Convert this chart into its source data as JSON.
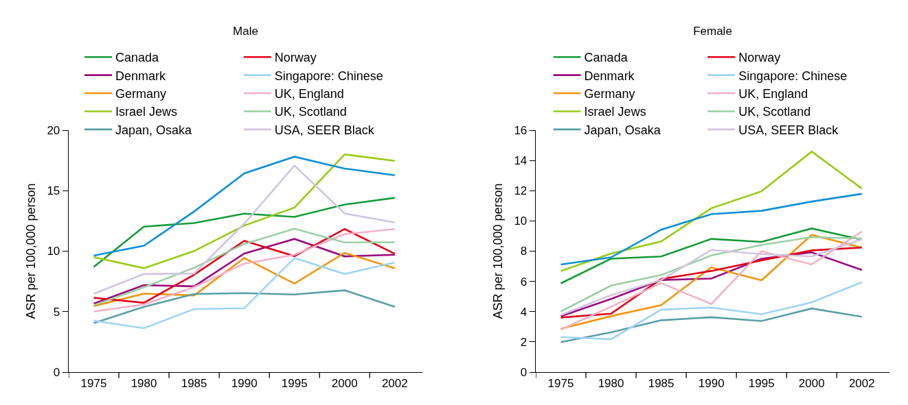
{
  "chart_data": [
    {
      "type": "line",
      "title": "Male",
      "ylabel": "ASR per 100,000 person",
      "categories": [
        "1975",
        "1980",
        "1985",
        "1990",
        "1995",
        "2000",
        "2002"
      ],
      "ylim": [
        0,
        20
      ],
      "yticks": [
        0,
        5,
        10,
        15,
        20
      ],
      "grid": false,
      "legend": "top",
      "marker": "none",
      "line_style": "solid",
      "series": [
        {
          "name": "Canada",
          "color": "#169b3a",
          "values": [
            8.7,
            12.03,
            12.32,
            13.1,
            12.83,
            13.85,
            14.41
          ]
        },
        {
          "name": "Denmark",
          "color": "#9b0a7d",
          "values": [
            5.67,
            7.19,
            7.09,
            9.8,
            11.01,
            9.57,
            9.7
          ]
        },
        {
          "name": "Germany",
          "color": "#f0960f",
          "values": [
            5.46,
            6.49,
            6.34,
            9.43,
            7.32,
            9.86,
            8.59
          ]
        },
        {
          "name": "Israel Jews",
          "color": "#97cb14",
          "values": [
            9.51,
            8.59,
            10.01,
            12.12,
            13.6,
            18.0,
            17.46
          ]
        },
        {
          "name": "Japan, Osaka",
          "color": "#5a9ea6",
          "values": [
            4.05,
            5.4,
            6.46,
            6.53,
            6.42,
            6.76,
            5.4
          ]
        },
        {
          "name": "Norway",
          "color": "#e2001a",
          "values": [
            6.15,
            5.73,
            8.05,
            10.85,
            9.59,
            11.83,
            9.78
          ]
        },
        {
          "name": "Singapore: Chinese",
          "color": "#9fd4f3",
          "values": [
            4.25,
            3.63,
            5.21,
            5.28,
            9.43,
            8.11,
            9.07
          ]
        },
        {
          "name": "UK, England",
          "color": "#f5b0c5",
          "values": [
            5.01,
            5.59,
            7.03,
            8.97,
            9.7,
            11.41,
            11.83
          ]
        },
        {
          "name": "UK, Scotland",
          "color": "#9ccfa4",
          "values": [
            5.53,
            7.01,
            8.63,
            10.59,
            11.85,
            10.72,
            10.74
          ]
        },
        {
          "name": "USA, SEER Black",
          "color": "#d1c5e0",
          "values": [
            6.47,
            8.11,
            8.15,
            12.28,
            17.08,
            13.12,
            12.37
          ]
        },
        {
          "color": "#0f8fd6",
          "values": [
            9.63,
            10.45,
            13.28,
            16.43,
            17.81,
            16.83,
            16.27
          ]
        }
      ]
    },
    {
      "type": "line",
      "title": "Female",
      "ylabel": "ASR per 100,000 person",
      "categories": [
        "1975",
        "1980",
        "1985",
        "1990",
        "1995",
        "2000",
        "2002"
      ],
      "ylim": [
        0,
        16
      ],
      "yticks": [
        0,
        2,
        4,
        6,
        8,
        10,
        12,
        14,
        16
      ],
      "grid": false,
      "legend": "top",
      "marker": "none",
      "line_style": "solid",
      "series": [
        {
          "name": "Canada",
          "color": "#169b3a",
          "values": [
            5.87,
            7.5,
            7.65,
            8.81,
            8.61,
            9.5,
            8.76
          ]
        },
        {
          "name": "Denmark",
          "color": "#9b0a7d",
          "values": [
            3.69,
            4.84,
            6.09,
            6.19,
            7.5,
            7.92,
            6.75
          ]
        },
        {
          "name": "Germany",
          "color": "#f0960f",
          "values": [
            2.87,
            3.7,
            4.43,
            6.93,
            6.07,
            9.08,
            8.24
          ]
        },
        {
          "name": "Israel Jews",
          "color": "#97cb14",
          "values": [
            6.69,
            7.84,
            8.64,
            10.84,
            11.96,
            14.59,
            12.14
          ]
        },
        {
          "name": "Japan, Osaka",
          "color": "#5a9ea6",
          "values": [
            1.98,
            2.63,
            3.43,
            3.63,
            3.38,
            4.21,
            3.66
          ]
        },
        {
          "name": "Norway",
          "color": "#e2001a",
          "values": [
            3.61,
            3.86,
            6.16,
            6.69,
            7.39,
            8.05,
            8.24
          ]
        },
        {
          "name": "Singapore: Chinese",
          "color": "#9fd4f3",
          "values": [
            2.32,
            2.17,
            4.13,
            4.27,
            3.83,
            4.61,
            5.95
          ]
        },
        {
          "name": "UK, England",
          "color": "#f5b0c5",
          "values": [
            2.81,
            4.32,
            5.89,
            4.5,
            7.99,
            7.12,
            9.3
          ]
        },
        {
          "name": "UK, Scotland",
          "color": "#9ccfa4",
          "values": [
            4.01,
            5.72,
            6.42,
            7.72,
            8.41,
            8.93,
            8.84
          ]
        },
        {
          "name": "USA, SEER Black",
          "color": "#d1c5e0",
          "values": [
            3.77,
            5.09,
            6.09,
            8.08,
            7.81,
            7.65,
            8.78
          ]
        },
        {
          "color": "#0f8fd6",
          "values": [
            7.12,
            7.59,
            9.42,
            10.45,
            10.67,
            11.28,
            11.79
          ]
        }
      ]
    }
  ]
}
